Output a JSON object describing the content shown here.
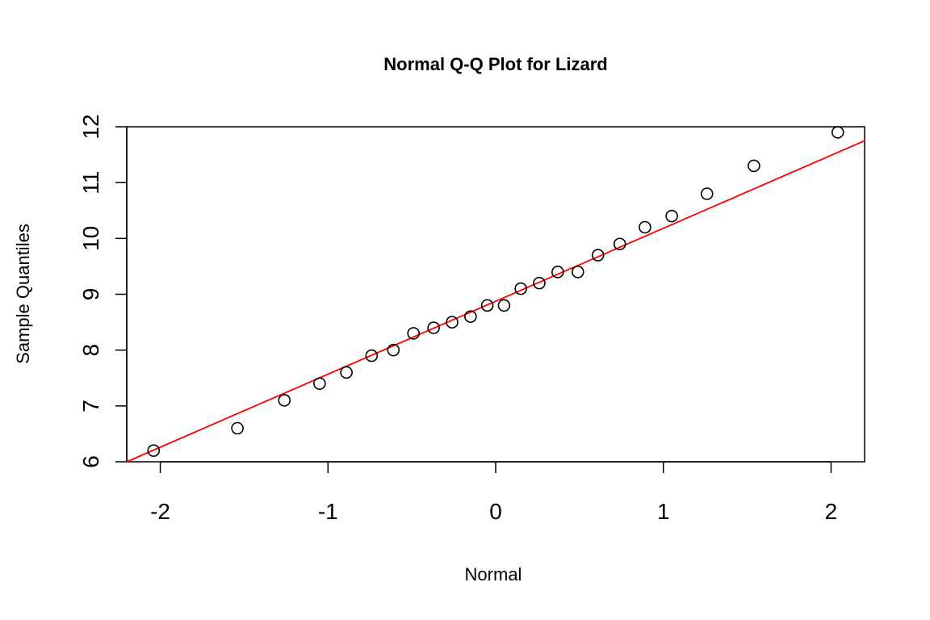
{
  "chart_data": {
    "type": "scatter",
    "title": "Normal Q-Q Plot for Lizard",
    "xlabel": "Normal",
    "ylabel": "Sample Quantiles",
    "xlim": [
      -2.2,
      2.2
    ],
    "ylim": [
      6,
      12
    ],
    "x_ticks": [
      -2,
      -1,
      0,
      1,
      2
    ],
    "x_tick_labels": [
      "-2",
      "-1",
      "0",
      "1",
      "2"
    ],
    "y_ticks": [
      6,
      7,
      8,
      9,
      10,
      11,
      12
    ],
    "y_tick_labels": [
      "6",
      "7",
      "8",
      "9",
      "10",
      "11",
      "12"
    ],
    "grid": false,
    "points": {
      "x": [
        -2.04,
        -1.54,
        -1.26,
        -1.05,
        -0.89,
        -0.74,
        -0.61,
        -0.49,
        -0.37,
        -0.26,
        -0.15,
        -0.05,
        0.05,
        0.15,
        0.26,
        0.37,
        0.49,
        0.61,
        0.74,
        0.89,
        1.05,
        1.26,
        1.54,
        2.04
      ],
      "y": [
        6.2,
        6.6,
        7.1,
        7.4,
        7.6,
        7.9,
        8.0,
        8.3,
        8.4,
        8.5,
        8.6,
        8.8,
        8.8,
        9.1,
        9.2,
        9.4,
        9.4,
        9.7,
        9.9,
        10.2,
        10.4,
        10.8,
        11.3,
        11.9
      ],
      "marker": "open-circle",
      "color": "#000000"
    },
    "reference_line": {
      "from": [
        -2.2,
        6.0
      ],
      "to": [
        2.2,
        11.75
      ],
      "color": "#ff0000"
    }
  }
}
